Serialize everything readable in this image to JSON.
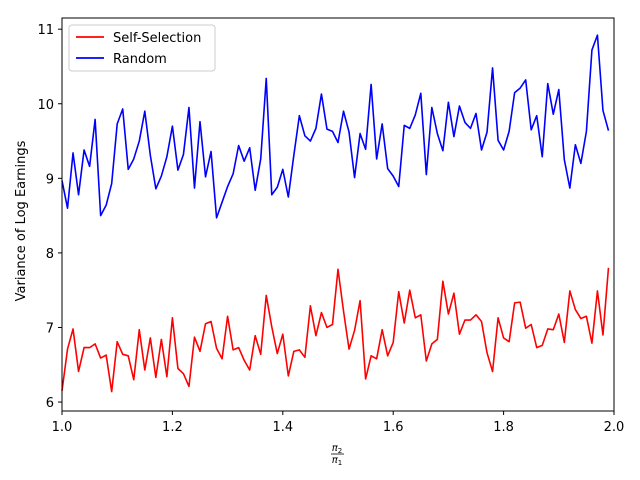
{
  "chart_data": {
    "type": "line",
    "ylabel": "Variance of Log Earnings",
    "xlabel_parts": {
      "num_sym": "π",
      "num_sub": "2",
      "den_sym": "π",
      "den_sub": "1"
    },
    "xlim": [
      1.0,
      2.0
    ],
    "ylim": [
      5.88,
      11.15
    ],
    "xticks": [
      1.0,
      1.2,
      1.4,
      1.6,
      1.8,
      2.0
    ],
    "xtick_labels": [
      "1.0",
      "1.2",
      "1.4",
      "1.6",
      "1.8",
      "2.0"
    ],
    "yticks": [
      6,
      7,
      8,
      9,
      10,
      11
    ],
    "ytick_labels": [
      "6",
      "7",
      "8",
      "9",
      "10",
      "11"
    ],
    "grid": false,
    "legend_position": "upper-left",
    "x_start": 1.0,
    "x_step": 0.01,
    "series": [
      {
        "name": "Self-Selection",
        "color": "#ff0000",
        "values": [
          6.15,
          6.71,
          6.98,
          6.41,
          6.73,
          6.73,
          6.78,
          6.59,
          6.63,
          6.14,
          6.81,
          6.64,
          6.62,
          6.3,
          6.97,
          6.43,
          6.86,
          6.33,
          6.84,
          6.34,
          7.13,
          6.45,
          6.38,
          6.21,
          6.87,
          6.68,
          7.05,
          7.08,
          6.72,
          6.58,
          7.15,
          6.7,
          6.73,
          6.56,
          6.43,
          6.89,
          6.64,
          7.43,
          7.01,
          6.65,
          6.91,
          6.35,
          6.68,
          6.7,
          6.6,
          7.29,
          6.89,
          7.2,
          7.0,
          7.04,
          7.78,
          7.22,
          6.71,
          6.96,
          7.36,
          6.31,
          6.62,
          6.58,
          6.97,
          6.62,
          6.8,
          7.48,
          7.06,
          7.5,
          7.13,
          7.17,
          6.55,
          6.78,
          6.84,
          7.62,
          7.18,
          7.46,
          6.91,
          7.1,
          7.1,
          7.17,
          7.08,
          6.66,
          6.41,
          7.13,
          6.86,
          6.81,
          7.33,
          7.34,
          6.99,
          7.04,
          6.73,
          6.76,
          6.98,
          6.97,
          7.18,
          6.8,
          7.49,
          7.24,
          7.12,
          7.15,
          6.79,
          7.49,
          6.9,
          7.8
        ]
      },
      {
        "name": "Random",
        "color": "#0000ff",
        "values": [
          8.97,
          8.6,
          9.34,
          8.78,
          9.38,
          9.16,
          9.79,
          8.5,
          8.64,
          8.93,
          9.73,
          9.93,
          9.12,
          9.26,
          9.5,
          9.9,
          9.31,
          8.86,
          9.03,
          9.29,
          9.7,
          9.11,
          9.32,
          9.95,
          8.87,
          9.76,
          9.02,
          9.36,
          8.47,
          8.68,
          8.89,
          9.06,
          9.44,
          9.23,
          9.41,
          8.84,
          9.26,
          10.34,
          8.78,
          8.88,
          9.12,
          8.75,
          9.31,
          9.84,
          9.57,
          9.5,
          9.67,
          10.13,
          9.66,
          9.63,
          9.48,
          9.9,
          9.62,
          9.01,
          9.6,
          9.39,
          10.26,
          9.26,
          9.73,
          9.13,
          9.03,
          8.89,
          9.71,
          9.67,
          9.85,
          10.14,
          9.05,
          9.95,
          9.6,
          9.37,
          10.02,
          9.56,
          9.97,
          9.75,
          9.67,
          9.87,
          9.38,
          9.62,
          10.48,
          9.51,
          9.38,
          9.63,
          10.15,
          10.21,
          10.32,
          9.65,
          9.84,
          9.29,
          10.27,
          9.86,
          10.19,
          9.25,
          8.87,
          9.45,
          9.2,
          9.63,
          10.72,
          10.92,
          9.91,
          9.64
        ]
      }
    ]
  }
}
